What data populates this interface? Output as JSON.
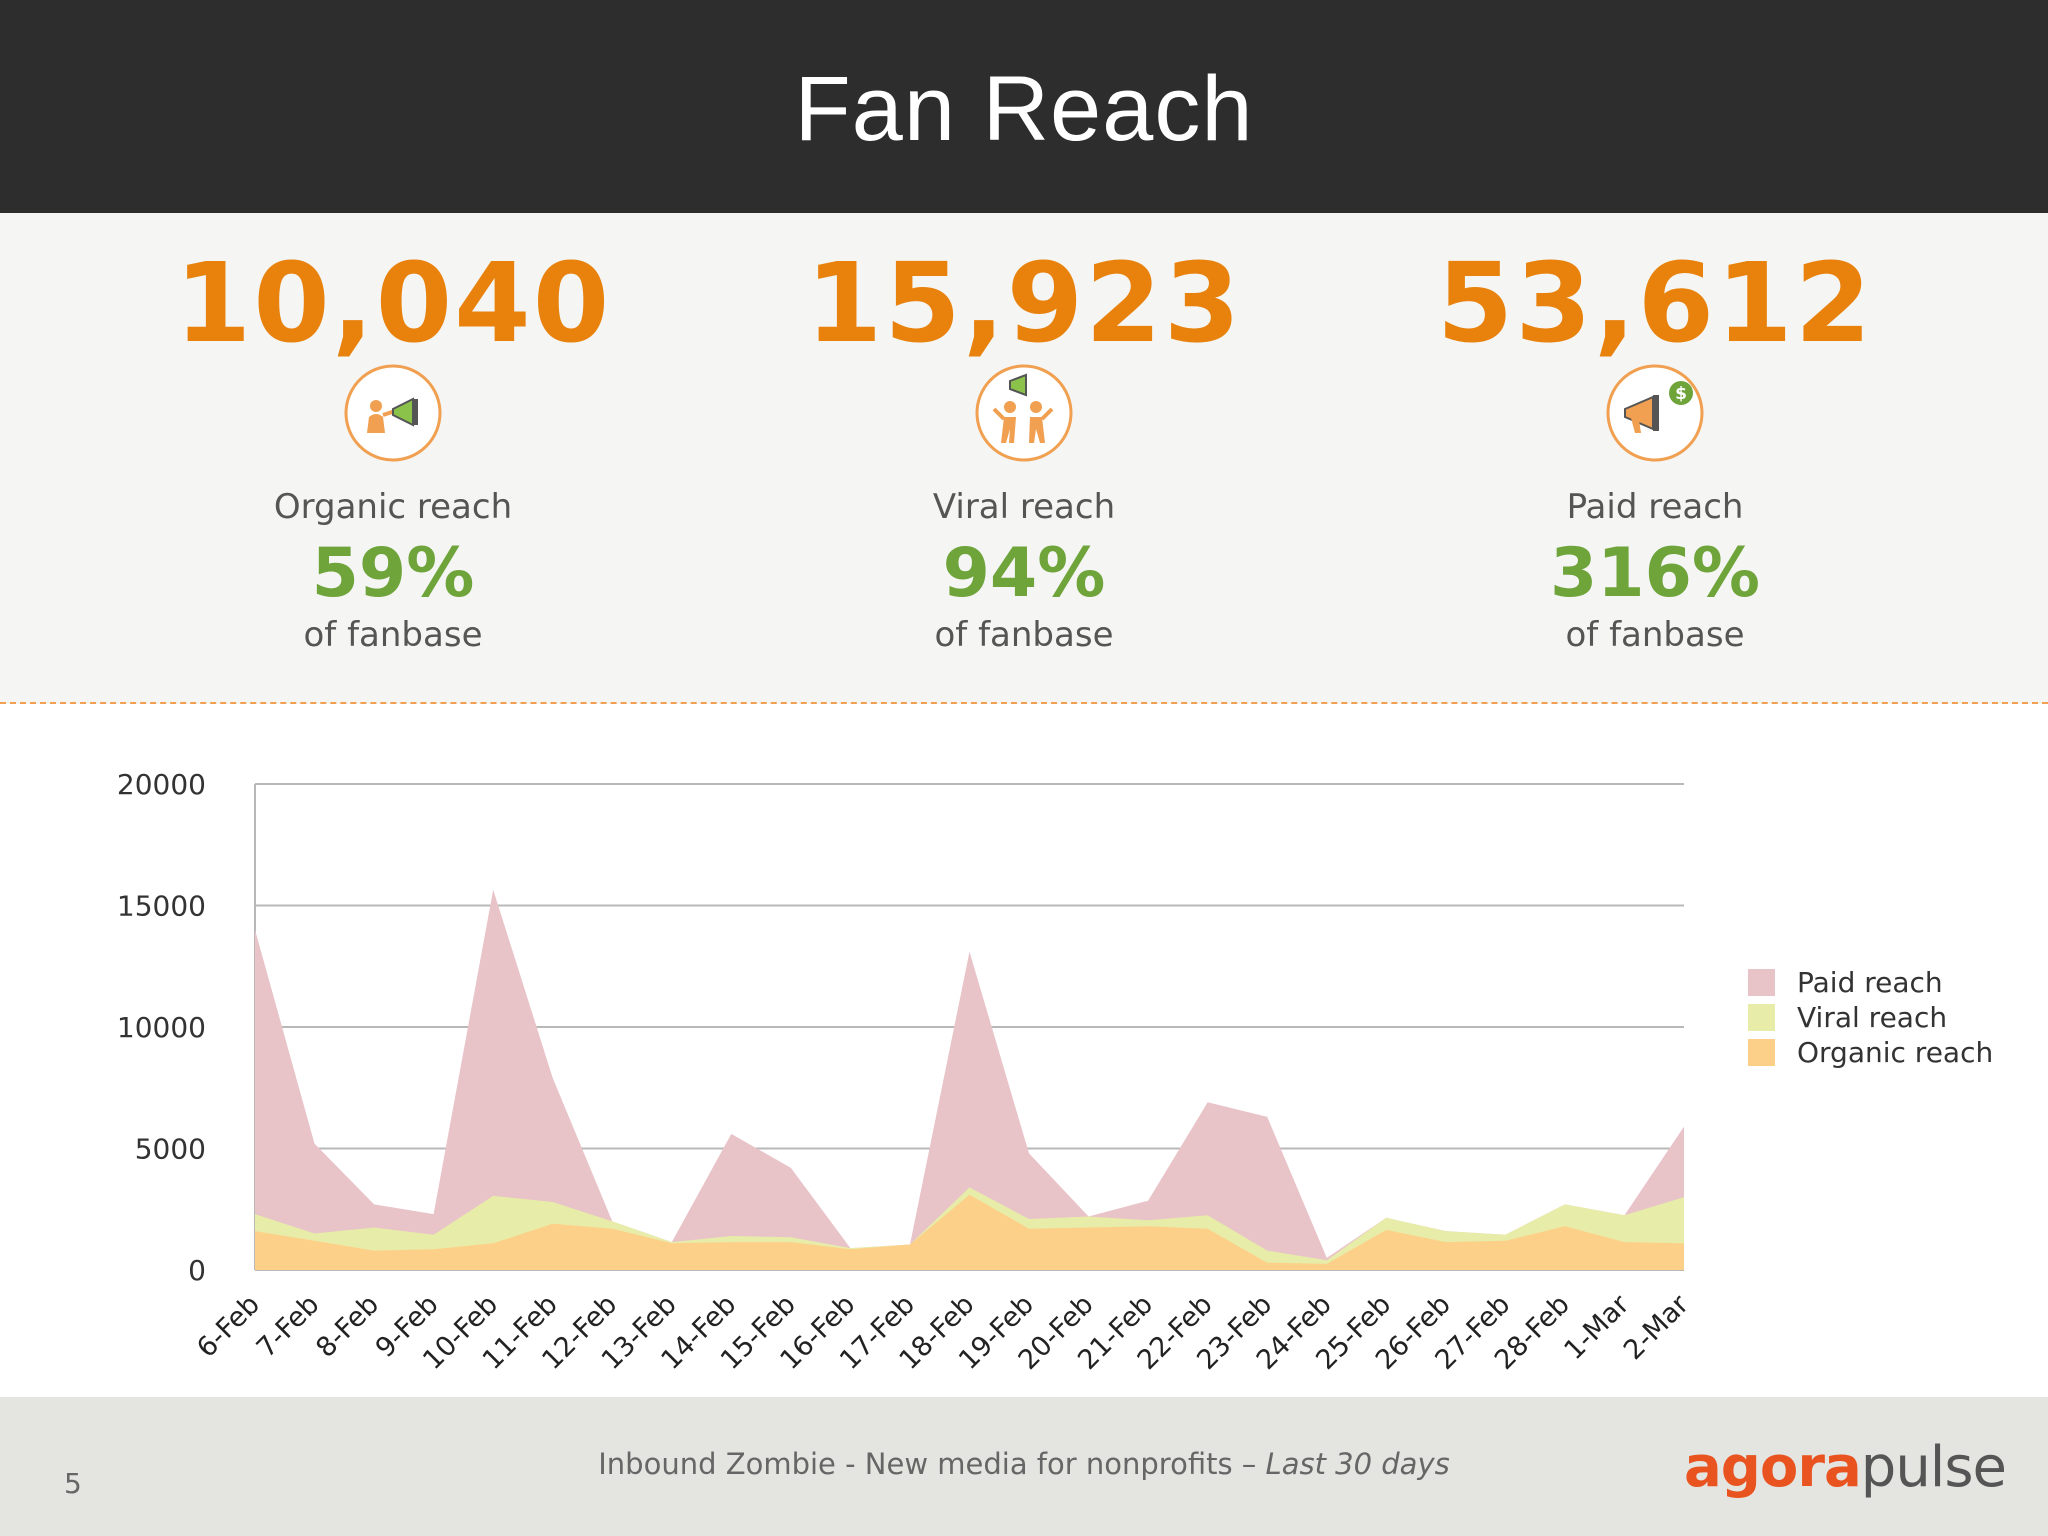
{
  "title": "Fan Reach",
  "stats": [
    {
      "value": "10,040",
      "label": "Organic reach",
      "percent": "59%",
      "sub": "of fanbase",
      "icon": "megaphone-person-icon"
    },
    {
      "value": "15,923",
      "label": "Viral reach",
      "percent": "94%",
      "sub": "of fanbase",
      "icon": "people-megaphone-icon"
    },
    {
      "value": "53,612",
      "label": "Paid reach",
      "percent": "316%",
      "sub": "of fanbase",
      "icon": "megaphone-dollar-icon"
    }
  ],
  "colors": {
    "accent": "#e8820c",
    "percent": "#6ea43a",
    "paid": "#e8c3c8",
    "viral": "#e7eca8",
    "organic": "#fdd089"
  },
  "chart_data": {
    "type": "area",
    "stacked": true,
    "categories": [
      "6-Feb",
      "7-Feb",
      "8-Feb",
      "9-Feb",
      "10-Feb",
      "11-Feb",
      "12-Feb",
      "13-Feb",
      "14-Feb",
      "15-Feb",
      "16-Feb",
      "17-Feb",
      "18-Feb",
      "19-Feb",
      "20-Feb",
      "21-Feb",
      "22-Feb",
      "23-Feb",
      "24-Feb",
      "25-Feb",
      "26-Feb",
      "27-Feb",
      "28-Feb",
      "1-Mar",
      "2-Mar"
    ],
    "series": [
      {
        "name": "Organic reach",
        "values": [
          1600,
          1200,
          800,
          850,
          1100,
          1900,
          1700,
          1100,
          1150,
          1150,
          850,
          1050,
          3100,
          1700,
          1750,
          1800,
          1700,
          300,
          250,
          1650,
          1150,
          1200,
          1800,
          1150,
          1100
        ]
      },
      {
        "name": "Viral reach",
        "values": [
          700,
          300,
          950,
          600,
          1950,
          900,
          300,
          50,
          250,
          200,
          50,
          0,
          300,
          400,
          450,
          250,
          550,
          500,
          150,
          500,
          450,
          250,
          900,
          1100,
          1900
        ]
      },
      {
        "name": "Paid reach",
        "values": [
          11700,
          3700,
          950,
          850,
          12600,
          5100,
          0,
          0,
          4200,
          2850,
          0,
          0,
          9700,
          2700,
          0,
          800,
          4650,
          5500,
          100,
          0,
          0,
          0,
          0,
          0,
          2900
        ]
      }
    ],
    "ylim": [
      0,
      20000
    ],
    "yticks": [
      "0",
      "5000",
      "10000",
      "15000",
      "20000"
    ],
    "legend": [
      "Paid reach",
      "Viral reach",
      "Organic reach"
    ],
    "legend_position": "right",
    "grid": true
  },
  "footer": {
    "page_number": "5",
    "caption_main": "Inbound Zombie - New media for nonprofits – ",
    "caption_em": "Last 30 days",
    "logo_a": "agora",
    "logo_p": "pulse"
  }
}
